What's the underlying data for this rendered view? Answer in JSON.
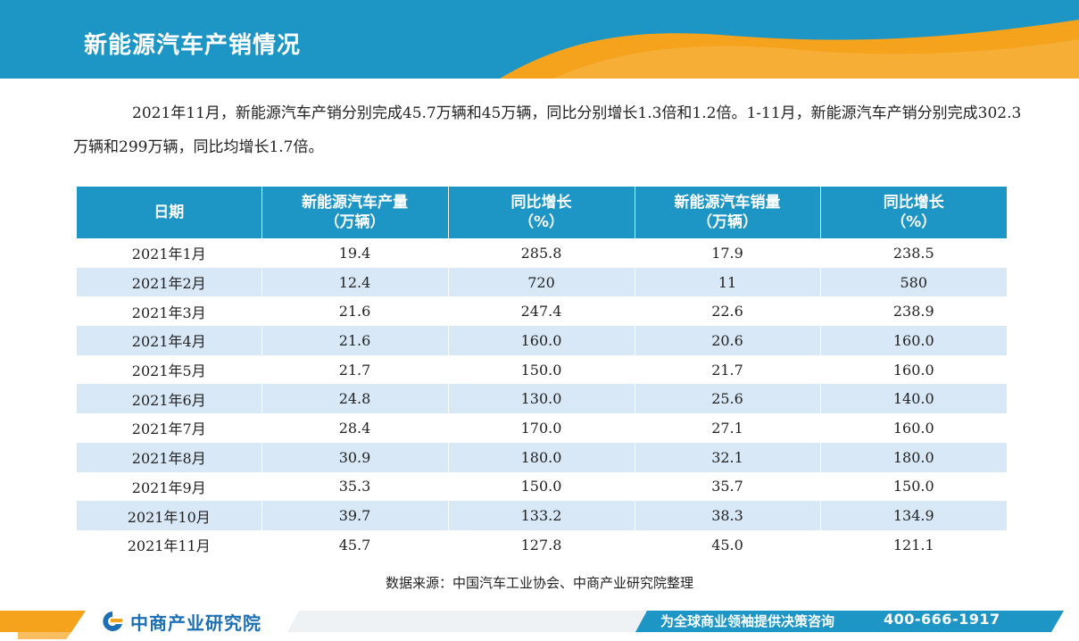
{
  "header": {
    "title": "新能源汽车产销情况",
    "colors": {
      "primary": "#1d96c5",
      "accent": "#f5a21d"
    }
  },
  "intro": {
    "text": "2021年11月，新能源汽车产销分别完成45.7万辆和45万辆，同比分别增长1.3倍和1.2倍。1-11月，新能源汽车产销分别完成302.3万辆和299万辆，同比均增长1.7倍。"
  },
  "table": {
    "headers": [
      {
        "line1": "日期",
        "line2": ""
      },
      {
        "line1": "新能源汽车产量",
        "line2": "（万辆）"
      },
      {
        "line1": "同比增长",
        "line2": "（%）"
      },
      {
        "line1": "新能源汽车销量",
        "line2": "（万辆）"
      },
      {
        "line1": "同比增长",
        "line2": "（%）"
      }
    ],
    "rows": [
      [
        "2021年1月",
        "19.4",
        "285.8",
        "17.9",
        "238.5"
      ],
      [
        "2021年2月",
        "12.4",
        "720",
        "11",
        "580"
      ],
      [
        "2021年3月",
        "21.6",
        "247.4",
        "22.6",
        "238.9"
      ],
      [
        "2021年4月",
        "21.6",
        "160.0",
        "20.6",
        "160.0"
      ],
      [
        "2021年5月",
        "21.7",
        "150.0",
        "21.7",
        "160.0"
      ],
      [
        "2021年6月",
        "24.8",
        "130.0",
        "25.6",
        "140.0"
      ],
      [
        "2021年7月",
        "28.4",
        "170.0",
        "27.1",
        "160.0"
      ],
      [
        "2021年8月",
        "30.9",
        "180.0",
        "32.1",
        "180.0"
      ],
      [
        "2021年9月",
        "35.3",
        "150.0",
        "35.7",
        "150.0"
      ],
      [
        "2021年10月",
        "39.7",
        "133.2",
        "38.3",
        "134.9"
      ],
      [
        "2021年11月",
        "45.7",
        "127.8",
        "45.0",
        "121.1"
      ]
    ]
  },
  "source": "数据来源：中国汽车工业协会、中商产业研究院整理",
  "footer": {
    "logo_text": "中商产业研究院",
    "logo_icon": "company-logo-icon",
    "slogan": "为全球商业领袖提供决策咨询",
    "phone": "400-666-1917"
  }
}
